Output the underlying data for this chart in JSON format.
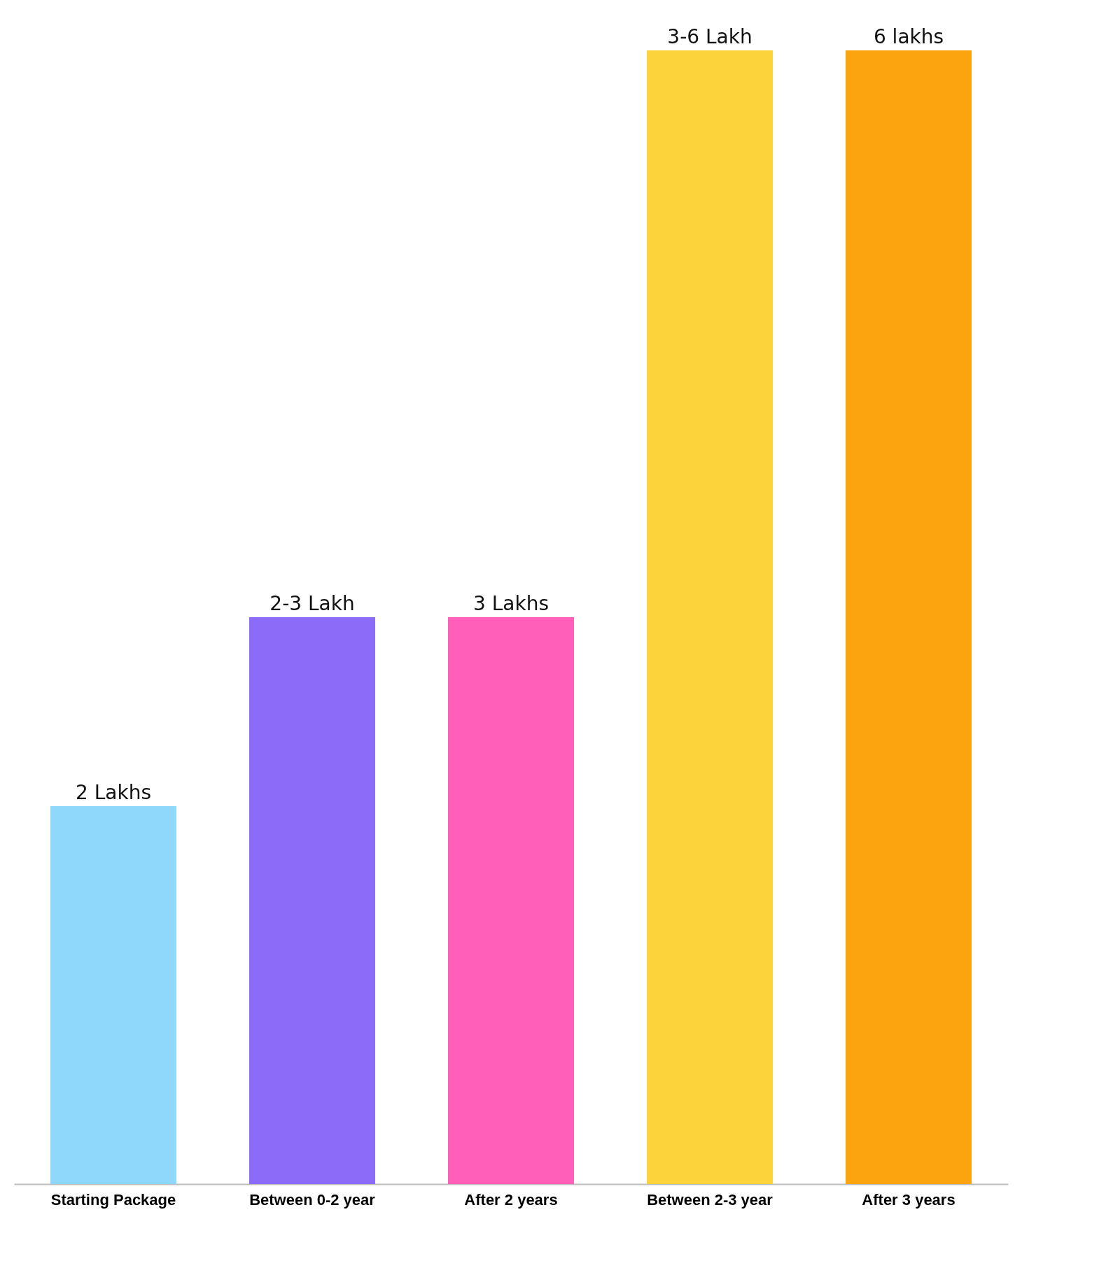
{
  "chart_data": {
    "type": "bar",
    "categories": [
      "Starting Package",
      "Between 0-2 year",
      "After 2 years",
      "Between 2-3 year",
      "After 3 years"
    ],
    "values": [
      2,
      3,
      3,
      6,
      6
    ],
    "value_labels": [
      "2 Lakhs",
      "2-3 Lakh",
      "3 Lakhs",
      "3-6 Lakh",
      "6 lakhs"
    ],
    "colors": [
      "#8fd8fb",
      "#8a6cf9",
      "#ff5fb8",
      "#fcd33a",
      "#fca40f"
    ]
  }
}
